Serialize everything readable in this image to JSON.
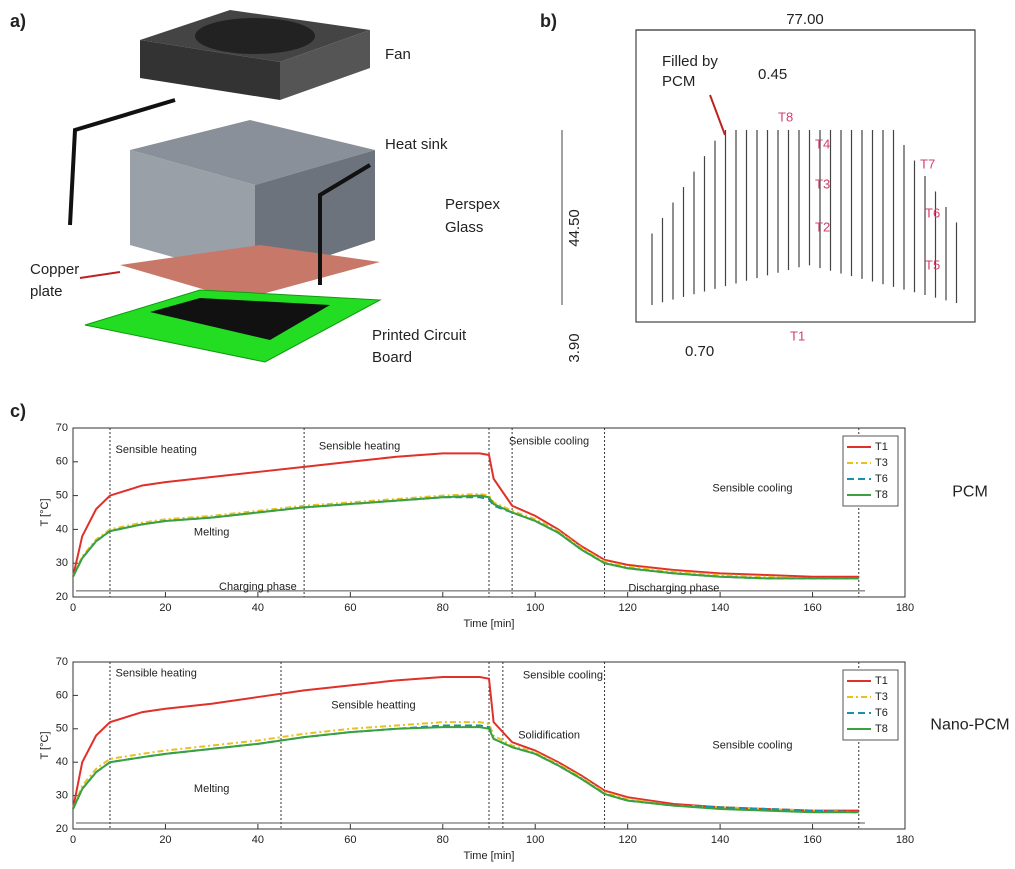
{
  "figure_a": {
    "label": "a)",
    "labels": [
      "Fan",
      "Heat sink",
      "Perspex",
      "Glass",
      "Copper",
      "plate",
      "Printed Circuit",
      "Board"
    ]
  },
  "figure_b": {
    "label": "b)",
    "dimensions": [
      "77.00",
      "0.45",
      "44.50",
      "3.90",
      "0.70"
    ],
    "note": [
      "Filled by",
      "PCM"
    ],
    "sensors": [
      "T8",
      "T4",
      "T3",
      "T2",
      "T7",
      "T6",
      "T5",
      "T1"
    ]
  },
  "figure_c_label": "c)",
  "chart_data": [
    {
      "type": "line",
      "label": "PCM",
      "xlabel": "Time [min]",
      "ylabel": "T [°C]",
      "xlim": [
        0,
        180
      ],
      "xticks": [
        0,
        20,
        40,
        60,
        80,
        100,
        120,
        140,
        160,
        180
      ],
      "ylim": [
        20,
        70
      ],
      "yticks": [
        20,
        30,
        40,
        50,
        60,
        70
      ],
      "legend": "upper right",
      "markers": [
        8,
        50,
        90,
        95,
        115,
        170
      ],
      "annotations": [
        "Sensible heating",
        "Sensible heating",
        "Sensible cooling",
        "Sensible cooling",
        "Melting",
        "Charging phase",
        "Discharging phase"
      ],
      "x": [
        0,
        2,
        5,
        8,
        15,
        20,
        30,
        40,
        50,
        60,
        70,
        80,
        88,
        90,
        91,
        95,
        100,
        105,
        110,
        115,
        120,
        130,
        140,
        150,
        160,
        170
      ],
      "series": [
        {
          "name": "T1",
          "color": "#e0302a",
          "dash": "solid",
          "values": [
            26,
            38,
            46,
            50,
            53,
            54,
            55.5,
            57,
            58.5,
            60,
            61.5,
            62.5,
            62.5,
            62,
            55,
            47,
            44,
            40,
            35,
            31,
            29.5,
            28,
            27,
            26.5,
            26,
            26
          ]
        },
        {
          "name": "T3",
          "color": "#e8c020",
          "dash": "dashdot",
          "values": [
            26,
            32,
            37,
            40,
            42,
            43,
            44,
            45.5,
            47,
            48,
            49,
            50,
            50.5,
            50,
            48,
            45.5,
            43,
            39.5,
            34.5,
            30.5,
            29,
            27.5,
            26.5,
            26,
            25.5,
            25.5
          ]
        },
        {
          "name": "T6",
          "color": "#1a8fb0",
          "dash": "dashed",
          "values": [
            26,
            31.5,
            36.5,
            39.5,
            41.5,
            42.5,
            43.5,
            45,
            46.5,
            47.5,
            48.5,
            49.5,
            49.5,
            49,
            47,
            45,
            42.5,
            39,
            34,
            30,
            28.5,
            27,
            26,
            25.5,
            25.5,
            25.5
          ]
        },
        {
          "name": "T8",
          "color": "#3aa040",
          "dash": "solid",
          "values": [
            26,
            31.5,
            36.5,
            39.5,
            41.5,
            42.5,
            43.5,
            45,
            46.5,
            47.5,
            48.5,
            49.5,
            50,
            49.5,
            47.5,
            45,
            42.5,
            39,
            34,
            30,
            28.5,
            27,
            26,
            25.5,
            25.5,
            25.5
          ]
        }
      ]
    },
    {
      "type": "line",
      "label": "Nano-PCM",
      "xlabel": "Time [min]",
      "ylabel": "T [°C]",
      "xlim": [
        0,
        180
      ],
      "xticks": [
        0,
        20,
        40,
        60,
        80,
        100,
        120,
        140,
        160,
        180
      ],
      "ylim": [
        20,
        70
      ],
      "yticks": [
        20,
        30,
        40,
        50,
        60,
        70
      ],
      "legend": "upper right",
      "markers": [
        8,
        45,
        90,
        93,
        115,
        170
      ],
      "annotations": [
        "Sensible heating",
        "Sensible heatting",
        "Sensible cooling",
        "Solidification",
        "Sensible cooling",
        "Melting"
      ],
      "x": [
        0,
        2,
        5,
        8,
        15,
        20,
        30,
        40,
        50,
        60,
        70,
        80,
        88,
        90,
        91,
        95,
        100,
        105,
        110,
        115,
        120,
        130,
        140,
        150,
        160,
        170
      ],
      "series": [
        {
          "name": "T1",
          "color": "#e0302a",
          "dash": "solid",
          "values": [
            26,
            40,
            48,
            52,
            55,
            56,
            57.5,
            59.5,
            61.5,
            63,
            64.5,
            65.5,
            65.5,
            65,
            52,
            46,
            43.5,
            40,
            36,
            31.5,
            29.5,
            27.5,
            26.5,
            26,
            25.5,
            25.5
          ]
        },
        {
          "name": "T3",
          "color": "#e8c020",
          "dash": "dashdot",
          "values": [
            26,
            33,
            38,
            41,
            42.5,
            43.5,
            45,
            46.5,
            48.5,
            50,
            51,
            52,
            52,
            51.5,
            48,
            45,
            43,
            39.5,
            35.5,
            31,
            29,
            27,
            26.5,
            26,
            25.5,
            25
          ]
        },
        {
          "name": "T6",
          "color": "#1a8fb0",
          "dash": "dashed",
          "values": [
            26,
            32,
            37,
            40,
            41.5,
            42.5,
            44,
            45.5,
            47.5,
            49,
            50,
            51,
            51,
            50.5,
            47,
            44.5,
            42.5,
            39,
            35,
            30.5,
            28.5,
            27,
            26.5,
            26,
            25.5,
            25
          ]
        },
        {
          "name": "T8",
          "color": "#3aa040",
          "dash": "solid",
          "values": [
            26,
            32,
            37,
            40,
            41.5,
            42.5,
            44,
            45.5,
            47.5,
            49,
            50,
            50.5,
            50.5,
            50,
            47,
            44.5,
            42.5,
            39,
            35,
            30.5,
            28.5,
            27,
            26,
            25.5,
            25,
            25
          ]
        }
      ]
    }
  ]
}
